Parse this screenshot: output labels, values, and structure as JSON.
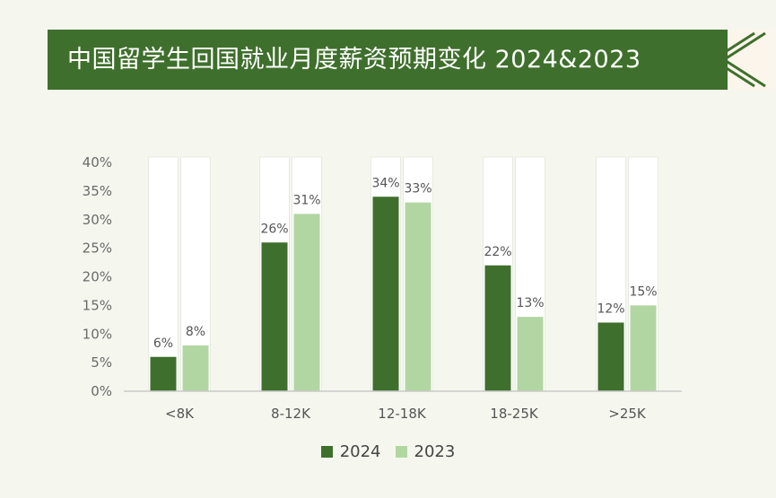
{
  "header": {
    "title": "中国留学生回国就业月度薪资预期变化 2024&2023"
  },
  "colors": {
    "banner": "#3f6f2c",
    "series_2024": "#3f6f2c",
    "series_2023": "#b2d6a2",
    "background": "#f5f7ef"
  },
  "chart_data": {
    "type": "bar",
    "categories": [
      "<8K",
      "8-12K",
      "12-18K",
      "18-25K",
      ">25K"
    ],
    "series": [
      {
        "name": "2024",
        "values": [
          6,
          26,
          34,
          22,
          12
        ],
        "labels": [
          "6%",
          "26%",
          "34%",
          "22%",
          "12%"
        ]
      },
      {
        "name": "2023",
        "values": [
          8,
          31,
          33,
          13,
          15
        ],
        "labels": [
          "8%",
          "31%",
          "33%",
          "13%",
          "15%"
        ]
      }
    ],
    "yticks": [
      "0%",
      "5%",
      "10%",
      "15%",
      "20%",
      "25%",
      "30%",
      "35%",
      "40%"
    ],
    "ylim": [
      0,
      40
    ],
    "legend_position": "bottom",
    "grid": false
  }
}
